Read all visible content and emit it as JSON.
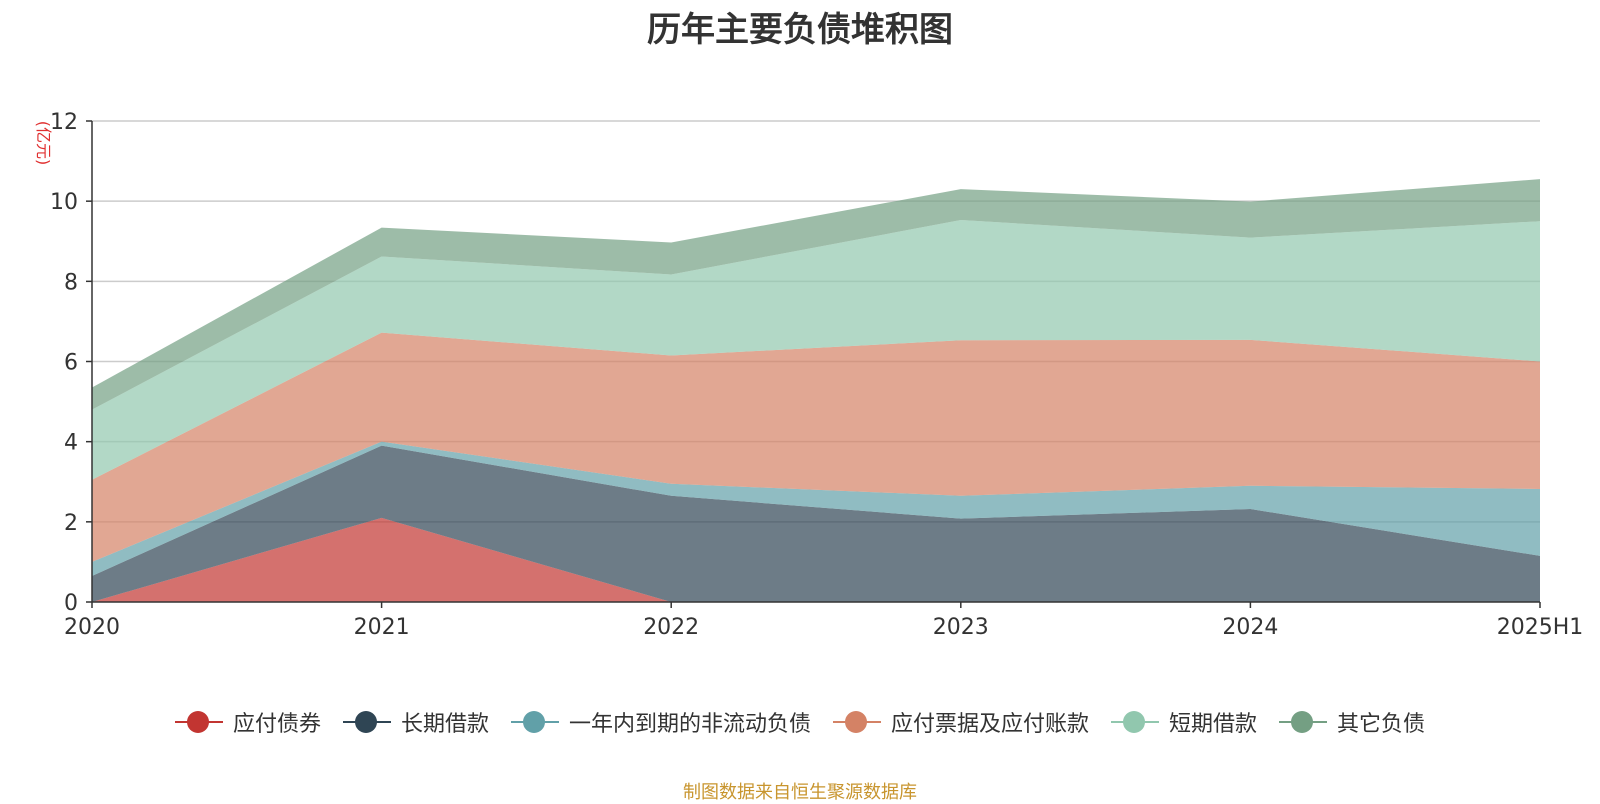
{
  "chart_data": {
    "type": "area",
    "title": "历年主要负债堆积图",
    "ylabel": "(亿元)",
    "xlabel": "",
    "categories": [
      "2020",
      "2021",
      "2022",
      "2023",
      "2024",
      "2025H1"
    ],
    "ylim": [
      0,
      12
    ],
    "yticks": [
      0,
      2,
      4,
      6,
      8,
      10,
      12
    ],
    "stacked": true,
    "grid": true,
    "legend_position": "bottom",
    "series": [
      {
        "name": "应付债券",
        "color": "#c23531",
        "values": [
          0,
          2.1,
          0,
          0,
          0,
          0
        ]
      },
      {
        "name": "长期借款",
        "color": "#2f4554",
        "values": [
          0.65,
          1.8,
          2.65,
          2.08,
          2.32,
          1.15
        ]
      },
      {
        "name": "一年内到期的非流动负债",
        "color": "#61a0a8",
        "values": [
          0.35,
          0.1,
          0.3,
          0.57,
          0.58,
          1.67
        ]
      },
      {
        "name": "应付票据及应付账款",
        "color": "#d48265",
        "values": [
          2.05,
          2.72,
          3.2,
          3.88,
          3.64,
          3.18
        ]
      },
      {
        "name": "短期借款",
        "color": "#91c7ae",
        "values": [
          1.75,
          1.9,
          2.02,
          3.0,
          2.55,
          3.5
        ]
      },
      {
        "name": "其它负债",
        "color": "#749f83",
        "values": [
          0.55,
          0.72,
          0.8,
          0.77,
          0.9,
          1.05
        ]
      }
    ]
  },
  "footer": {
    "source": "制图数据来自恒生聚源数据库"
  }
}
